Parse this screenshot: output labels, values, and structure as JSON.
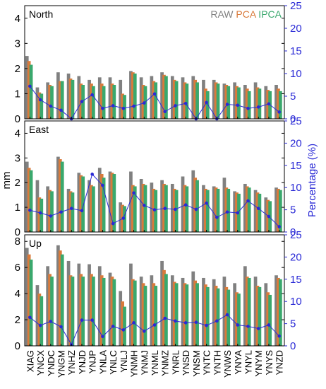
{
  "colors": {
    "raw": "#808080",
    "pca": "#d97a3b",
    "ipca": "#3aa86d",
    "percentage": "#2a2ad6",
    "axis_right": "#2a2ad6",
    "frame": "#000000"
  },
  "legend": {
    "raw": "RAW",
    "pca": "PCA",
    "ipca": "IPCA"
  },
  "y_left_label": "mm",
  "y_right_label": "Percentage (%)",
  "chart_data": {
    "type": "bar",
    "categories": [
      "XIAG",
      "YNCX",
      "YNDC",
      "YNGM",
      "YNHZ",
      "YNJD",
      "YNJP",
      "YNLA",
      "YNLC",
      "YNLJ",
      "YNMH",
      "YNMJ",
      "YNML",
      "YNMZ",
      "YNRL",
      "YNSD",
      "YNSM",
      "YNTC",
      "YNTH",
      "YNWS",
      "YNYA",
      "YNYL",
      "YNYM",
      "YNYS",
      "YNZD"
    ],
    "panels": [
      {
        "label": "North",
        "ylim_left": [
          0,
          4.5
        ],
        "yticks_left": [
          0,
          1,
          2,
          3,
          4
        ],
        "ylim_right": [
          0,
          25
        ],
        "yticks_right": [
          0,
          5,
          10,
          15,
          20,
          25
        ],
        "series": [
          {
            "name": "RAW",
            "values": [
              2.5,
              1.25,
              1.45,
              1.85,
              1.8,
              1.7,
              1.55,
              1.65,
              1.65,
              1.55,
              1.9,
              1.65,
              1.7,
              1.85,
              1.7,
              1.65,
              1.7,
              1.55,
              1.55,
              1.4,
              1.45,
              1.35,
              1.45,
              1.3,
              1.35
            ]
          },
          {
            "name": "PCA",
            "values": [
              2.3,
              1.05,
              1.35,
              1.5,
              1.6,
              1.4,
              1.4,
              1.4,
              1.4,
              1.0,
              1.85,
              1.35,
              1.5,
              1.75,
              1.55,
              1.45,
              1.55,
              1.2,
              1.45,
              1.35,
              1.3,
              1.2,
              1.25,
              1.15,
              1.2
            ]
          },
          {
            "name": "IPCA",
            "values": [
              2.15,
              1.0,
              1.3,
              1.5,
              1.55,
              1.35,
              1.3,
              1.3,
              1.35,
              0.95,
              1.8,
              1.3,
              1.45,
              1.7,
              1.5,
              1.4,
              1.45,
              1.1,
              1.4,
              1.3,
              1.25,
              1.1,
              1.2,
              1.1,
              1.1
            ]
          }
        ],
        "percentage": [
          7.2,
          4.2,
          2.8,
          1.9,
          0.0,
          3.8,
          5.3,
          2.3,
          2.9,
          2.3,
          2.8,
          3.5,
          5.5,
          1.6,
          2.9,
          3.4,
          0.0,
          3.6,
          0.0,
          3.2,
          3.0,
          2.3,
          2.6,
          3.3,
          1.5
        ]
      },
      {
        "label": "East",
        "ylim_left": [
          0,
          4.5
        ],
        "yticks_left": [
          0,
          1,
          2,
          3,
          4
        ],
        "ylim_right": [
          0,
          25
        ],
        "yticks_right": [
          0,
          5,
          10,
          15,
          20,
          25
        ],
        "series": [
          {
            "name": "RAW",
            "values": [
              2.85,
              2.1,
              1.85,
              3.05,
              1.75,
              2.4,
              2.1,
              2.6,
              2.45,
              1.2,
              2.45,
              2.15,
              2.0,
              2.1,
              1.95,
              2.25,
              2.5,
              1.9,
              1.85,
              2.2,
              1.65,
              1.95,
              1.7,
              1.4,
              1.8
            ]
          },
          {
            "name": "PCA",
            "values": [
              2.6,
              1.4,
              1.7,
              2.95,
              1.65,
              2.3,
              1.9,
              2.35,
              2.4,
              1.1,
              1.9,
              1.95,
              1.75,
              1.95,
              1.75,
              1.9,
              2.2,
              1.75,
              1.8,
              1.8,
              1.6,
              1.85,
              1.6,
              1.3,
              1.75
            ]
          },
          {
            "name": "IPCA",
            "values": [
              2.5,
              1.35,
              1.65,
              2.85,
              1.6,
              2.25,
              1.85,
              2.2,
              2.35,
              1.05,
              1.85,
              1.9,
              1.7,
              1.9,
              1.7,
              1.85,
              2.1,
              1.7,
              1.75,
              1.75,
              1.55,
              1.8,
              1.55,
              1.25,
              1.7
            ]
          }
        ],
        "percentage": [
          4.9,
          4.3,
          3.6,
          4.5,
          5.3,
          4.8,
          13.0,
          10.5,
          1.9,
          3.1,
          8.8,
          6.0,
          5.0,
          5.3,
          5.1,
          6.1,
          5.1,
          6.5,
          3.3,
          4.5,
          4.3,
          7.0,
          5.3,
          3.5,
          1.2
        ]
      },
      {
        "label": "Up",
        "ylim_left": [
          0,
          8.5
        ],
        "yticks_left": [
          0,
          2,
          4,
          6,
          8
        ],
        "ylim_right": [
          0,
          25
        ],
        "yticks_right": [
          0,
          5,
          10,
          15,
          20,
          25
        ],
        "series": [
          {
            "name": "RAW",
            "values": [
              7.5,
              4.65,
              6.1,
              7.7,
              6.5,
              6.3,
              6.25,
              6.1,
              5.6,
              4.2,
              6.3,
              5.3,
              5.4,
              6.5,
              5.4,
              5.2,
              5.7,
              5.2,
              5.1,
              5.3,
              4.8,
              6.1,
              5.3,
              4.8,
              5.4
            ]
          },
          {
            "name": "PCA",
            "values": [
              7.0,
              4.0,
              5.5,
              7.3,
              5.4,
              5.5,
              5.5,
              5.4,
              5.3,
              3.4,
              5.1,
              4.8,
              4.8,
              5.8,
              4.9,
              4.8,
              5.0,
              4.7,
              4.6,
              4.5,
              4.1,
              5.3,
              4.6,
              4.1,
              5.2
            ]
          },
          {
            "name": "IPCA",
            "values": [
              6.6,
              3.8,
              5.3,
              7.0,
              5.3,
              5.3,
              5.3,
              5.2,
              5.1,
              3.0,
              5.0,
              4.6,
              4.6,
              5.5,
              4.8,
              4.7,
              4.8,
              4.5,
              4.4,
              4.3,
              4.0,
              5.2,
              4.5,
              3.9,
              5.1
            ]
          }
        ],
        "percentage": [
          6.4,
          4.6,
          5.5,
          4.3,
          0.3,
          5.8,
          5.8,
          2.1,
          4.4,
          3.6,
          5.2,
          3.3,
          4.7,
          6.2,
          5.6,
          5.2,
          5.3,
          4.6,
          5.6,
          7.0,
          4.7,
          4.4,
          3.9,
          4.7,
          2.2
        ]
      }
    ]
  }
}
